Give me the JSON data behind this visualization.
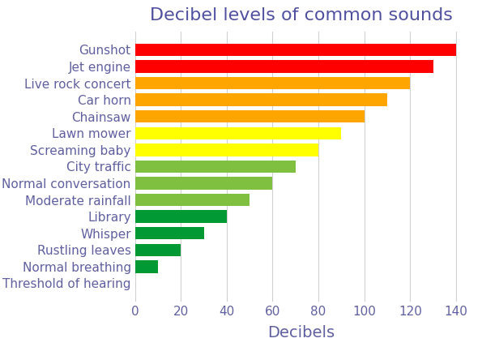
{
  "title": "Decibel levels of common sounds",
  "xlabel": "Decibels",
  "categories": [
    "Threshold of hearing",
    "Normal breathing",
    "Rustling leaves",
    "Whisper",
    "Library",
    "Moderate rainfall",
    "Normal conversation",
    "City traffic",
    "Screaming baby",
    "Lawn mower",
    "Chainsaw",
    "Car horn",
    "Live rock concert",
    "Jet engine",
    "Gunshot"
  ],
  "values": [
    0,
    10,
    20,
    30,
    40,
    50,
    60,
    70,
    80,
    90,
    100,
    110,
    120,
    130,
    140
  ],
  "colors": [
    "#c8d8c8",
    "#009933",
    "#009933",
    "#009933",
    "#009933",
    "#80c040",
    "#80c040",
    "#80c040",
    "#ffff00",
    "#ffff00",
    "#ffa500",
    "#ffa500",
    "#ffa500",
    "#ff0000",
    "#ff0000"
  ],
  "text_color": "#6060a0",
  "title_color": "#5050a0",
  "xlim": [
    0,
    145
  ],
  "xticks": [
    0,
    20,
    40,
    60,
    80,
    100,
    120,
    140
  ],
  "title_fontsize": 16,
  "label_fontsize": 14,
  "tick_fontsize": 11,
  "ylabel_fontsize": 11,
  "bar_height": 0.75,
  "background_color": "#ffffff",
  "grid_color": "#d0d0d0"
}
